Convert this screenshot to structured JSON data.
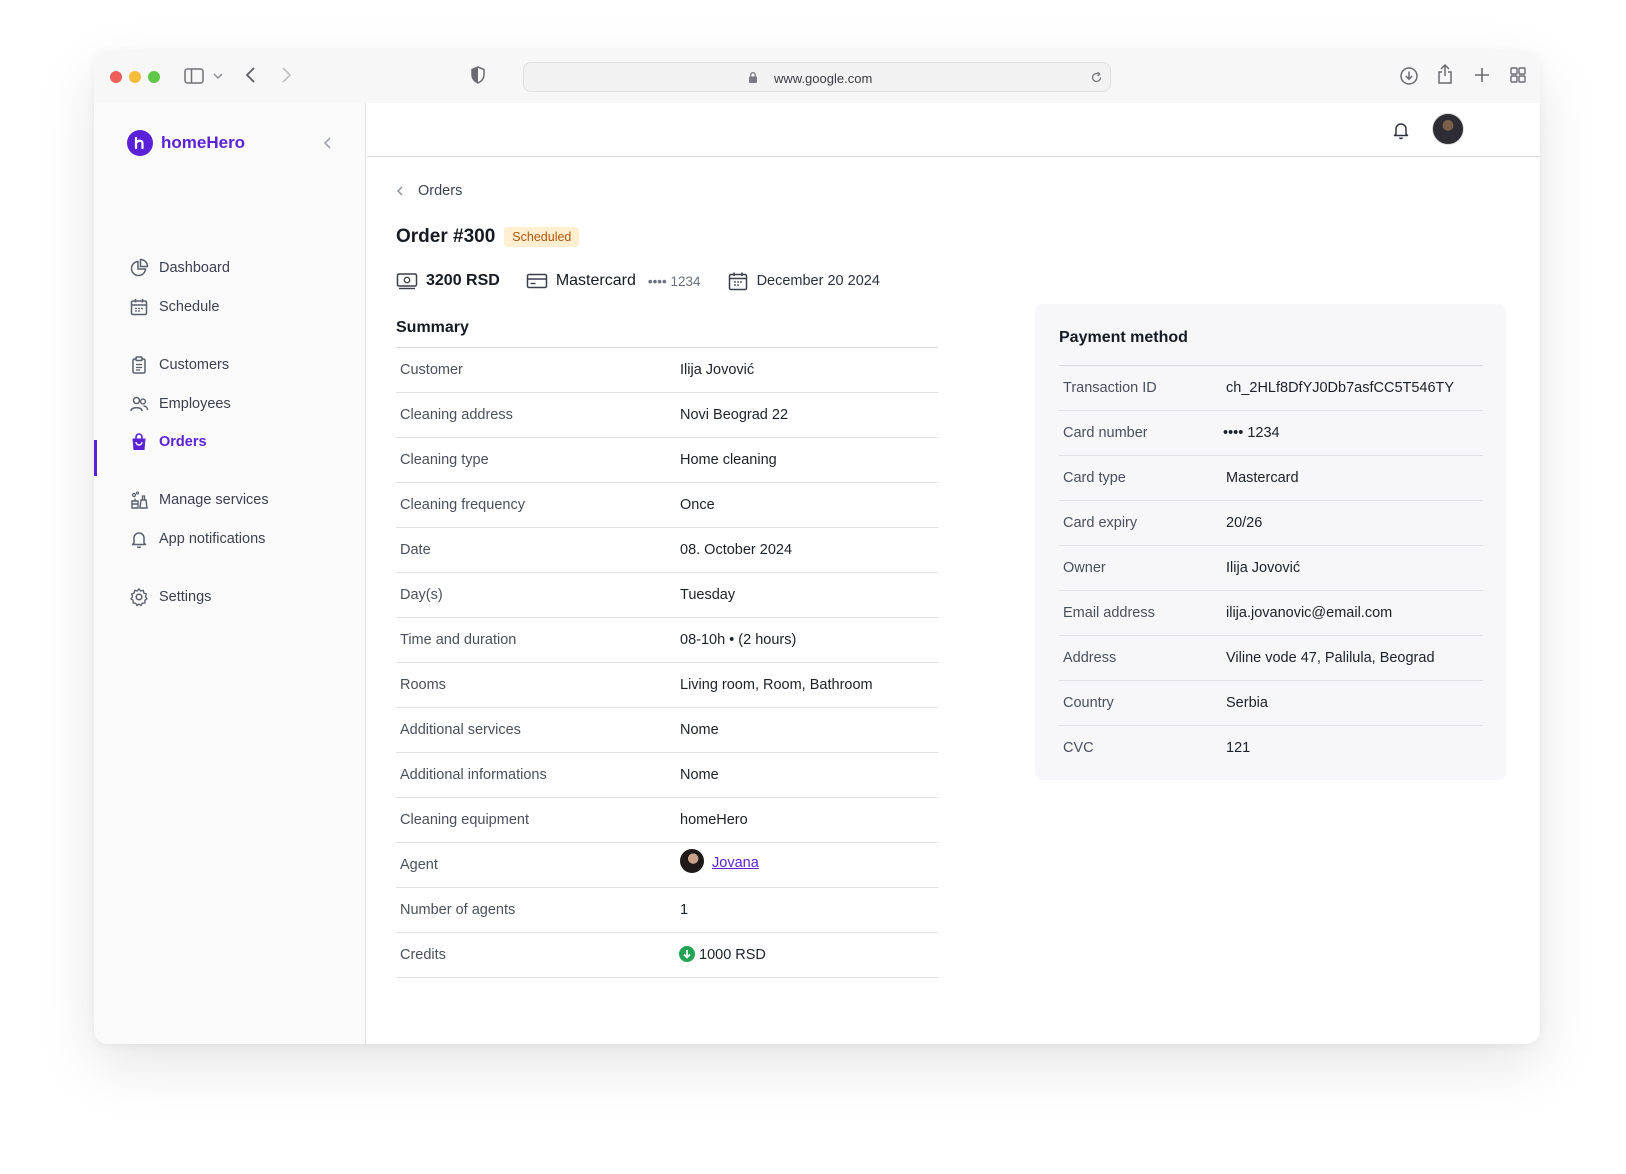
{
  "browser": {
    "url": "www.google.com"
  },
  "sidebar": {
    "brand": "homeHero",
    "items": [
      {
        "label": "Dashboard",
        "icon": "chart-pie-icon"
      },
      {
        "label": "Schedule",
        "icon": "calendar-icon"
      },
      {
        "label": "Customers",
        "icon": "clipboard-icon"
      },
      {
        "label": "Employees",
        "icon": "users-icon"
      },
      {
        "label": "Orders",
        "icon": "shopping-bag-icon",
        "active": true
      },
      {
        "label": "Manage services",
        "icon": "cleaning-icon"
      },
      {
        "label": "App notifications",
        "icon": "bell-icon"
      },
      {
        "label": "Settings",
        "icon": "gear-icon"
      }
    ]
  },
  "breadcrumb": {
    "back_label": "Orders"
  },
  "order": {
    "title": "Order #300",
    "status": "Scheduled",
    "amount": "3200 RSD",
    "card_brand": "Mastercard",
    "card_masked": "•••• 1234",
    "date": "December 20 2024"
  },
  "summary": {
    "title": "Summary",
    "rows": [
      {
        "label": "Customer",
        "value": "Ilija Jovović"
      },
      {
        "label": "Cleaning address",
        "value": "Novi Beograd 22"
      },
      {
        "label": "Cleaning type",
        "value": "Home cleaning"
      },
      {
        "label": "Cleaning frequency",
        "value": "Once"
      },
      {
        "label": "Date",
        "value": "08. October 2024"
      },
      {
        "label": "Day(s)",
        "value": "Tuesday"
      },
      {
        "label": "Time and duration",
        "value": "08-10h • (2 hours)"
      },
      {
        "label": "Rooms",
        "value": "Living room, Room, Bathroom"
      },
      {
        "label": "Additional services",
        "value": "Nome"
      },
      {
        "label": "Additional informations",
        "value": "Nome"
      },
      {
        "label": "Cleaning equipment",
        "value": "homeHero"
      },
      {
        "label": "Agent",
        "value": "Jovana"
      },
      {
        "label": "Number of agents",
        "value": "1"
      },
      {
        "label": "Credits",
        "value": "1000 RSD"
      }
    ]
  },
  "payment": {
    "title": "Payment method",
    "rows": [
      {
        "label": "Transaction ID",
        "value": "ch_2HLf8DfYJ0Db7asfCC5T546TY"
      },
      {
        "label": "Card number",
        "value": "•••• 1234"
      },
      {
        "label": "Card type",
        "value": "Mastercard"
      },
      {
        "label": "Card expiry",
        "value": "20/26"
      },
      {
        "label": "Owner",
        "value": "Ilija Jovović"
      },
      {
        "label": "Email address",
        "value": "ilija.jovanovic@email.com"
      },
      {
        "label": "Address",
        "value": "Viline vode 47, Palilula, Beograd"
      },
      {
        "label": "Country",
        "value": "Serbia"
      },
      {
        "label": "CVC",
        "value": "121"
      }
    ]
  },
  "colors": {
    "accent": "#5b21d6",
    "badge_bg": "#fdefcf",
    "badge_text": "#b4540b",
    "credit_green": "#22a355"
  }
}
